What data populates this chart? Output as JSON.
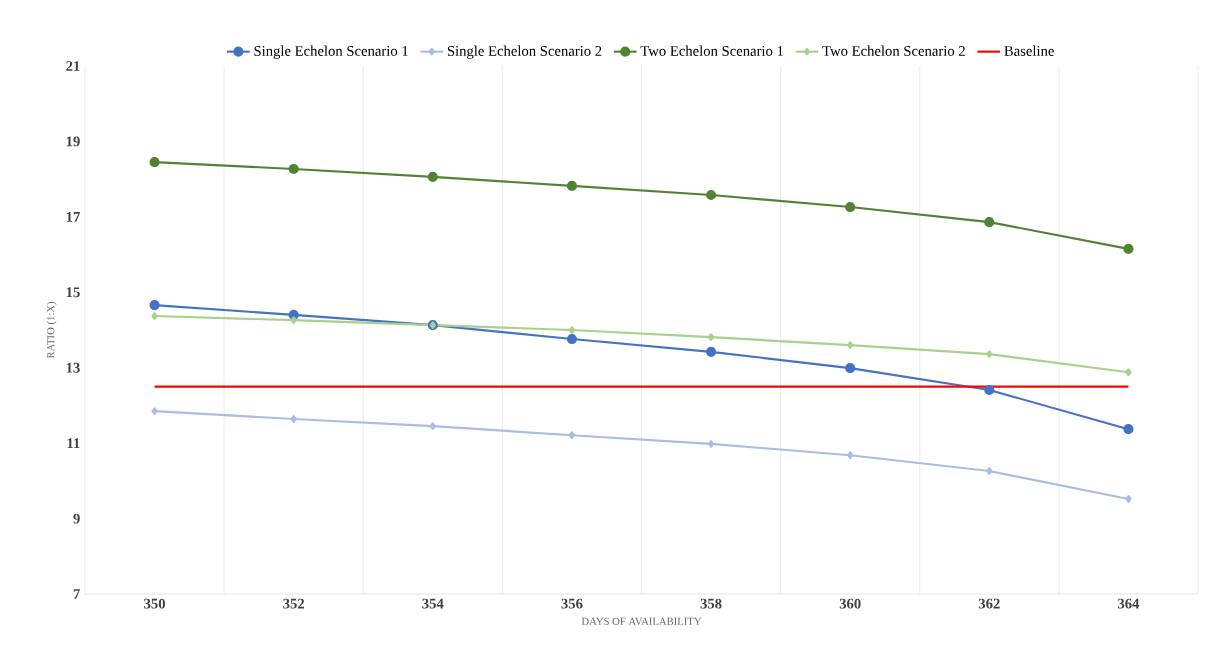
{
  "chart_data": {
    "type": "line",
    "xlabel": "DAYS OF AVAILABILITY",
    "ylabel": "RATIO (1:X)",
    "categories": [
      "350",
      "352",
      "354",
      "356",
      "358",
      "360",
      "362",
      "364"
    ],
    "series": [
      {
        "name": "Single Echelon Scenario 1",
        "color": "#4472c4",
        "marker": "circle",
        "values": [
          14.66,
          14.4,
          14.13,
          13.76,
          13.42,
          12.99,
          12.41,
          11.37
        ]
      },
      {
        "name": "Single Echelon Scenario 2",
        "color": "#a9bce6",
        "marker": "diamond",
        "values": [
          11.85,
          11.64,
          11.45,
          11.21,
          10.98,
          10.68,
          10.26,
          9.52
        ]
      },
      {
        "name": "Two Echelon Scenario 1",
        "color": "#548235",
        "marker": "circle",
        "values": [
          18.45,
          18.27,
          18.06,
          17.82,
          17.58,
          17.26,
          16.86,
          16.15
        ]
      },
      {
        "name": "Two Echelon Scenario 2",
        "color": "#a9d18e",
        "marker": "diamond",
        "values": [
          14.37,
          14.26,
          14.13,
          14.0,
          13.81,
          13.6,
          13.36,
          12.88
        ]
      },
      {
        "name": "Baseline",
        "color": "#ff0000",
        "marker": "none",
        "values": [
          12.5,
          12.5,
          12.5,
          12.5,
          12.5,
          12.5,
          12.5,
          12.5
        ]
      }
    ],
    "ylim": [
      7,
      21
    ],
    "yticks": [
      7,
      9,
      11,
      13,
      15,
      17,
      19,
      21
    ],
    "grid": "x",
    "legend": "top"
  }
}
